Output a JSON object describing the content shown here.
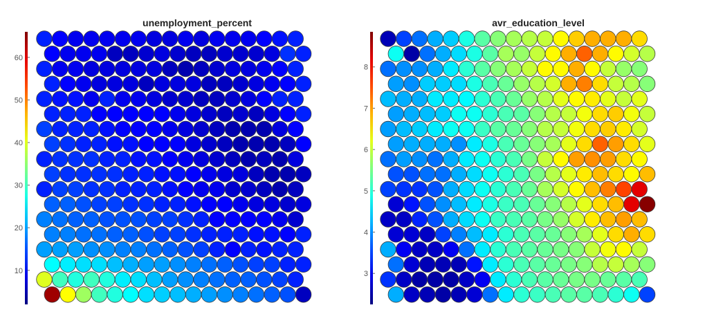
{
  "chart_data": [
    {
      "type": "heatmap",
      "subtype": "som-hexagonal-component-plane",
      "title": "unemployment_percent",
      "colormap": "jet",
      "color_range": [
        2,
        66
      ],
      "colorbar_ticks": [
        "10",
        "20",
        "30",
        "40",
        "50",
        "60"
      ],
      "colorbar_tick_values": [
        10,
        20,
        30,
        40,
        50,
        60
      ],
      "grid_rows": 18,
      "grid_cols": 17,
      "values": [
        [
          12,
          10,
          9,
          9,
          9,
          9,
          9,
          8,
          8,
          9,
          8,
          9,
          9,
          9,
          10,
          11,
          12
        ],
        [
          10,
          9,
          9,
          9,
          6,
          6,
          7,
          8,
          7,
          6,
          6,
          7,
          7,
          7,
          8,
          13,
          12
        ],
        [
          12,
          9,
          9,
          8,
          8,
          8,
          8,
          8,
          6,
          5,
          6,
          7,
          8,
          8,
          9,
          10,
          12
        ],
        [
          12,
          10,
          9,
          8,
          8,
          8,
          6,
          8,
          8,
          8,
          6,
          6,
          7,
          8,
          9,
          10,
          12
        ],
        [
          12,
          11,
          11,
          9,
          12,
          9,
          9,
          8,
          7,
          7,
          6,
          6,
          7,
          8,
          10,
          12,
          12
        ],
        [
          12,
          12,
          12,
          10,
          10,
          10,
          10,
          10,
          9,
          8,
          7,
          6,
          7,
          6,
          8,
          10,
          12
        ],
        [
          14,
          12,
          12,
          12,
          11,
          10,
          10,
          10,
          9,
          8,
          7,
          6,
          5,
          5,
          5,
          8,
          10
        ],
        [
          14,
          13,
          12,
          12,
          11,
          11,
          10,
          10,
          10,
          8,
          7,
          6,
          5,
          5,
          5,
          6,
          10
        ],
        [
          12,
          13,
          13,
          13,
          12,
          12,
          11,
          11,
          10,
          9,
          8,
          7,
          6,
          5,
          6,
          5,
          8
        ],
        [
          14,
          13,
          13,
          13,
          13,
          12,
          12,
          11,
          11,
          10,
          9,
          8,
          8,
          6,
          5,
          5,
          6
        ],
        [
          12,
          14,
          14,
          13,
          13,
          12,
          12,
          12,
          11,
          10,
          9,
          9,
          7,
          7,
          6,
          5,
          6
        ],
        [
          16,
          16,
          15,
          14,
          14,
          13,
          13,
          12,
          12,
          11,
          10,
          10,
          9,
          8,
          8,
          7,
          8
        ],
        [
          18,
          17,
          16,
          16,
          15,
          15,
          15,
          14,
          14,
          13,
          12,
          10,
          10,
          10,
          10,
          9,
          7
        ],
        [
          18,
          18,
          17,
          17,
          16,
          16,
          15,
          14,
          14,
          13,
          12,
          12,
          12,
          11,
          11,
          10,
          12
        ],
        [
          20,
          20,
          20,
          19,
          19,
          18,
          18,
          17,
          16,
          15,
          14,
          12,
          10,
          12,
          11,
          12,
          12
        ],
        [
          26,
          25,
          24,
          24,
          22,
          21,
          20,
          20,
          19,
          18,
          17,
          16,
          15,
          14,
          14,
          12,
          12
        ],
        [
          40,
          30,
          28,
          30,
          28,
          25,
          24,
          22,
          20,
          19,
          18,
          17,
          16,
          16,
          15,
          14,
          12
        ],
        [
          64,
          42,
          36,
          30,
          28,
          26,
          24,
          23,
          22,
          21,
          20,
          19,
          18,
          17,
          16,
          15,
          6
        ]
      ]
    },
    {
      "type": "heatmap",
      "subtype": "som-hexagonal-component-plane",
      "title": "avr_education_level",
      "colormap": "jet",
      "color_range": [
        2.25,
        8.85
      ],
      "colorbar_ticks": [
        "3",
        "4",
        "5",
        "6",
        "7",
        "8"
      ],
      "colorbar_tick_values": [
        3,
        4,
        5,
        6,
        7,
        8
      ],
      "grid_rows": 18,
      "grid_cols": 17,
      "values": [
        [
          2.6,
          3.5,
          3.8,
          4.2,
          4.4,
          4.9,
          5.3,
          5.6,
          5.8,
          5.9,
          6.0,
          6.4,
          6.7,
          6.9,
          6.9,
          6.9,
          6.6
        ],
        [
          4.8,
          2.5,
          3.8,
          4.2,
          4.5,
          4.9,
          5.3,
          5.8,
          5.7,
          6.0,
          6.4,
          6.9,
          7.4,
          6.9,
          6.4,
          6.1,
          5.9
        ],
        [
          3.8,
          4.0,
          4.0,
          4.2,
          4.6,
          5.0,
          5.3,
          5.6,
          5.8,
          6.0,
          6.4,
          6.4,
          6.9,
          6.4,
          6.0,
          5.7,
          5.6
        ],
        [
          4.1,
          4.0,
          4.4,
          4.4,
          4.5,
          4.9,
          5.2,
          5.4,
          5.7,
          5.9,
          6.1,
          6.9,
          7.2,
          6.6,
          6.0,
          5.9,
          5.6
        ],
        [
          4.3,
          4.2,
          4.2,
          4.6,
          4.6,
          4.7,
          5.0,
          5.2,
          5.4,
          5.7,
          5.9,
          6.2,
          6.4,
          6.5,
          6.2,
          6.0,
          6.2
        ],
        [
          4.1,
          4.2,
          4.3,
          4.4,
          4.8,
          4.8,
          5.0,
          5.2,
          5.3,
          5.6,
          5.9,
          6.0,
          6.3,
          6.6,
          6.7,
          6.3,
          6.0
        ],
        [
          4.1,
          4.3,
          4.4,
          4.6,
          4.8,
          4.8,
          5.1,
          5.3,
          5.4,
          5.6,
          5.9,
          6.0,
          6.3,
          6.6,
          6.7,
          6.5,
          6.1
        ],
        [
          4.1,
          4.2,
          4.2,
          4.2,
          4.0,
          4.6,
          4.9,
          5.2,
          5.4,
          5.6,
          5.8,
          6.2,
          6.6,
          7.4,
          7.0,
          6.6,
          6.2
        ],
        [
          3.8,
          4.1,
          4.0,
          3.8,
          4.2,
          4.6,
          4.8,
          5.0,
          5.2,
          5.5,
          6.0,
          6.4,
          7.0,
          7.1,
          7.0,
          6.6,
          6.4
        ],
        [
          3.6,
          3.6,
          3.8,
          3.8,
          4.2,
          4.5,
          4.8,
          5.0,
          5.2,
          5.5,
          5.9,
          6.2,
          6.5,
          6.8,
          6.6,
          6.4,
          6.8
        ],
        [
          3.5,
          3.4,
          3.4,
          3.6,
          4.2,
          4.5,
          4.8,
          5.0,
          5.2,
          5.4,
          5.8,
          6.1,
          6.4,
          6.8,
          7.2,
          7.6,
          8.2
        ],
        [
          2.8,
          3.2,
          3.6,
          4.0,
          4.3,
          4.6,
          4.9,
          5.1,
          5.2,
          5.4,
          5.6,
          5.9,
          6.2,
          6.6,
          6.8,
          8.2,
          8.8
        ],
        [
          2.7,
          2.7,
          3.3,
          3.6,
          4.2,
          4.5,
          4.8,
          5.1,
          5.2,
          5.3,
          5.5,
          5.7,
          6.1,
          6.5,
          6.8,
          7.0,
          6.8
        ],
        [
          2.8,
          2.8,
          2.7,
          3.5,
          3.9,
          4.3,
          4.6,
          5.0,
          5.2,
          5.3,
          5.4,
          5.6,
          5.8,
          6.2,
          6.6,
          6.9,
          6.6
        ],
        [
          4.2,
          3.0,
          2.7,
          2.7,
          3.0,
          3.8,
          4.6,
          5.0,
          5.2,
          5.3,
          5.4,
          5.5,
          5.6,
          6.0,
          6.3,
          6.4,
          6.0
        ],
        [
          3.8,
          2.8,
          2.6,
          2.6,
          2.6,
          3.2,
          4.6,
          5.0,
          5.2,
          5.3,
          5.4,
          5.5,
          5.6,
          5.9,
          6.0,
          5.8,
          5.6
        ],
        [
          3.4,
          2.7,
          2.5,
          2.5,
          2.5,
          2.7,
          3.0,
          4.6,
          5.0,
          5.2,
          5.3,
          5.4,
          5.5,
          5.5,
          5.4,
          5.3,
          5.2
        ],
        [
          4.2,
          2.7,
          2.6,
          2.5,
          2.6,
          2.8,
          3.8,
          4.6,
          5.0,
          5.1,
          5.2,
          5.3,
          5.3,
          5.2,
          5.0,
          4.8,
          3.5
        ]
      ]
    }
  ]
}
